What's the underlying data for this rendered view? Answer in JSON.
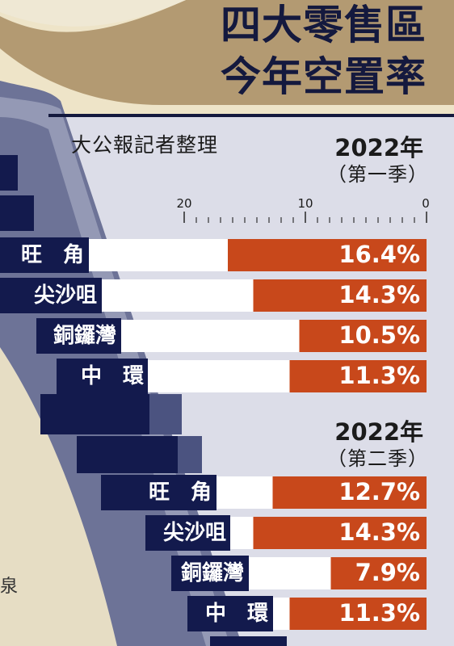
{
  "title_line1": "四大零售區",
  "title_line2": "今年空置率",
  "source": "大公報記者整理",
  "edge_fragment": "泉",
  "colors": {
    "bar_value": "#c8481b",
    "bar_blank": "#ffffff",
    "navy": "#131a4d",
    "page_bg": "#dcdde8",
    "gold": "#b39a72",
    "cream": "#eee4c8"
  },
  "chart_data": [
    {
      "type": "bar",
      "year": "2022年",
      "quarter": "（第一季）",
      "xlim": [
        0,
        20
      ],
      "ticks": [
        "20",
        "10",
        "0"
      ],
      "categories": [
        "旺　角",
        "尖沙咀",
        "銅鑼灣",
        "中　環"
      ],
      "values": [
        16.4,
        14.3,
        10.5,
        11.3
      ],
      "value_labels": [
        "16.4%",
        "14.3%",
        "10.5%",
        "11.3%"
      ]
    },
    {
      "type": "bar",
      "year": "2022年",
      "quarter": "（第二季）",
      "xlim": [
        0,
        20
      ],
      "categories": [
        "旺　角",
        "尖沙咀",
        "銅鑼灣",
        "中　環"
      ],
      "values": [
        12.7,
        14.3,
        7.9,
        11.3
      ],
      "value_labels": [
        "12.7%",
        "14.3%",
        "7.9%",
        "11.3%"
      ]
    }
  ]
}
